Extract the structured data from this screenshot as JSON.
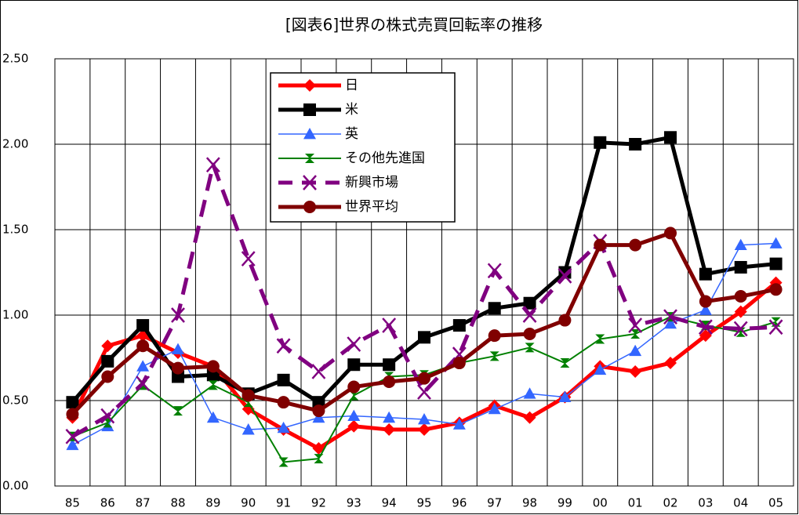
{
  "chart_data": {
    "type": "line",
    "title": "[図表6]世界の株式売買回転率の推移",
    "categories": [
      "85",
      "86",
      "87",
      "88",
      "89",
      "90",
      "91",
      "92",
      "93",
      "94",
      "95",
      "96",
      "97",
      "98",
      "99",
      "00",
      "01",
      "02",
      "03",
      "04",
      "05"
    ],
    "ylim": [
      0,
      2.5
    ],
    "yticks": [
      {
        "value": 0,
        "label": "0.00"
      },
      {
        "value": 0.5,
        "label": "0.50"
      },
      {
        "value": 1,
        "label": "1.00"
      },
      {
        "value": 1.5,
        "label": "1.50"
      },
      {
        "value": 2,
        "label": "2.00"
      },
      {
        "value": 2.5,
        "label": "2.50"
      }
    ],
    "grid": true,
    "legend": "upper left",
    "series": [
      {
        "name": "日",
        "color": "#ff0000",
        "marker": "diamond",
        "dash": false,
        "values": [
          0.4,
          0.82,
          0.88,
          0.78,
          0.7,
          0.45,
          0.33,
          0.22,
          0.35,
          0.33,
          0.33,
          0.37,
          0.47,
          0.4,
          0.52,
          0.7,
          0.67,
          0.72,
          0.88,
          1.02,
          1.19
        ]
      },
      {
        "name": "米",
        "color": "#000000",
        "marker": "square",
        "dash": false,
        "values": [
          0.49,
          0.73,
          0.94,
          0.64,
          0.65,
          0.54,
          0.62,
          0.49,
          0.71,
          0.71,
          0.87,
          0.94,
          1.04,
          1.07,
          1.25,
          2.01,
          2.0,
          2.04,
          1.24,
          1.28,
          1.3
        ]
      },
      {
        "name": "英",
        "color": "#3366ff",
        "marker": "triangle",
        "dash": false,
        "values": [
          0.24,
          0.35,
          0.7,
          0.8,
          0.4,
          0.33,
          0.34,
          0.4,
          0.41,
          0.4,
          0.39,
          0.36,
          0.45,
          0.54,
          0.52,
          0.68,
          0.79,
          0.95,
          1.03,
          1.41,
          1.42
        ]
      },
      {
        "name": "その他先進国",
        "color": "#008000",
        "marker": "bowtie",
        "dash": false,
        "values": [
          0.29,
          0.37,
          0.59,
          0.44,
          0.59,
          0.49,
          0.14,
          0.16,
          0.53,
          0.64,
          0.65,
          0.72,
          0.76,
          0.81,
          0.72,
          0.86,
          0.89,
          0.99,
          0.94,
          0.9,
          0.96
        ]
      },
      {
        "name": "新興市場",
        "color": "#800080",
        "marker": "x",
        "dash": true,
        "values": [
          0.29,
          0.41,
          0.6,
          1.0,
          1.88,
          1.33,
          0.82,
          0.67,
          0.83,
          0.94,
          0.55,
          0.77,
          1.26,
          1.0,
          1.23,
          1.43,
          0.94,
          0.99,
          0.93,
          0.92,
          0.93
        ]
      },
      {
        "name": "世界平均",
        "color": "#800000",
        "marker": "circle",
        "dash": false,
        "values": [
          0.42,
          0.64,
          0.82,
          0.69,
          0.7,
          0.53,
          0.49,
          0.44,
          0.58,
          0.61,
          0.63,
          0.72,
          0.88,
          0.89,
          0.97,
          1.41,
          1.41,
          1.48,
          1.08,
          1.11,
          1.15
        ]
      }
    ]
  }
}
